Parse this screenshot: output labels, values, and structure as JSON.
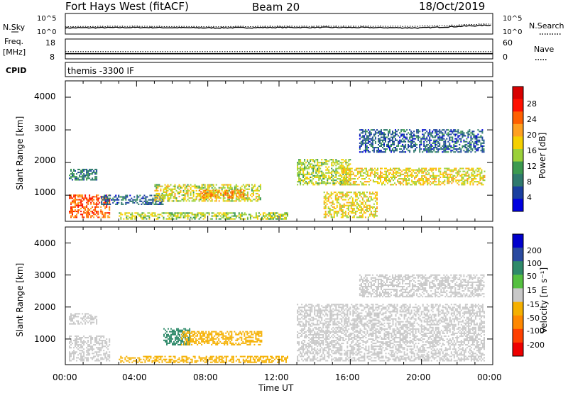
{
  "header": {
    "station": "Fort Hays West (fitACF)",
    "beam": "Beam 20",
    "date": "18/Oct/2019"
  },
  "noise_panel": {
    "left_label": "N.Sky",
    "right_label": "N.Search",
    "left_ticks": [
      "10^5",
      "10^0"
    ],
    "right_ticks": [
      "10^5",
      "10^0"
    ]
  },
  "freq_panel": {
    "left_label_1": "Freq.",
    "left_label_2": "[MHz]",
    "right_label": "Nave",
    "left_ticks": [
      "18",
      "8"
    ],
    "right_ticks": [
      "60",
      "0"
    ]
  },
  "cpid_panel": {
    "label": "CPID",
    "text": "themis -3300 IF"
  },
  "power_panel": {
    "ylabel": "Slant Range [km]",
    "yticks": [
      "4000",
      "3000",
      "2000",
      "1000"
    ],
    "colorbar_label": "Power [dB]",
    "colorbar_ticks": [
      "28",
      "24",
      "20",
      "16",
      "12",
      "8",
      "4"
    ],
    "colors": [
      "#0000e0",
      "#1a3fa0",
      "#2f7a6e",
      "#3c9a50",
      "#9bd13a",
      "#f5d000",
      "#ffa020",
      "#ff6000",
      "#ff1000",
      "#d80000"
    ]
  },
  "velocity_panel": {
    "ylabel": "Slant Range [km]",
    "yticks": [
      "4000",
      "3000",
      "2000",
      "1000"
    ],
    "colorbar_label": "Velocity [m s⁻¹]",
    "colorbar_ticks": [
      "200",
      "100",
      "50",
      "15",
      "-15",
      "-50",
      "-100",
      "-200"
    ],
    "colors": [
      "#0000cc",
      "#2a4aa0",
      "#2f8a6a",
      "#55c040",
      "#c8c8c8",
      "#f5b000",
      "#ff8800",
      "#ff4000",
      "#ee0000"
    ],
    "ground_scatter_color": "#c8c8c8"
  },
  "xaxis": {
    "label": "Time UT",
    "ticks": [
      "00:00",
      "04:00",
      "08:00",
      "12:00",
      "16:00",
      "20:00",
      "00:00"
    ]
  },
  "chart_data": [
    {
      "type": "line",
      "title": "Fort Hays West (fitACF)",
      "series": [
        {
          "name": "N.Sky",
          "x": [
            0,
            4,
            8,
            12,
            16,
            20,
            24
          ],
          "values": [
            1.5,
            1.6,
            1.5,
            1.6,
            1.6,
            1.5,
            2.2
          ]
        },
        {
          "name": "N.Search",
          "x": [
            0,
            4,
            8,
            12,
            16,
            20,
            24
          ],
          "values": [
            1.8,
            1.9,
            1.8,
            1.9,
            1.9,
            1.9,
            2.5
          ]
        }
      ],
      "xlabel": "Time UT",
      "ylim": [
        0,
        5
      ],
      "ylog": true
    },
    {
      "type": "line",
      "series": [
        {
          "name": "Freq.",
          "x": [
            0,
            4,
            8,
            12,
            16,
            20,
            24
          ],
          "values": [
            10.6,
            10.6,
            10.6,
            10.6,
            10.6,
            10.6,
            10.6
          ]
        },
        {
          "name": "Nave",
          "x": [
            0,
            4,
            8,
            12,
            16,
            20,
            24
          ],
          "values": [
            22,
            22,
            22,
            22,
            22,
            22,
            22
          ]
        }
      ],
      "ylim": [
        8,
        18
      ]
    },
    {
      "type": "heatmap",
      "title": "Beam 20",
      "quantity": "Power [dB]",
      "xlabel": "Time UT",
      "ylabel": "Slant Range [km]",
      "xlim": [
        0,
        24
      ],
      "ylim": [
        200,
        4500
      ],
      "clim": [
        0,
        30
      ],
      "regions": [
        {
          "t0": 0.2,
          "t1": 2.5,
          "r0": 300,
          "r1": 1000,
          "value": 22
        },
        {
          "t0": 0.2,
          "t1": 1.8,
          "r0": 1450,
          "r1": 1800,
          "value": 8
        },
        {
          "t0": 2.0,
          "t1": 5.5,
          "r0": 700,
          "r1": 1000,
          "value": 6
        },
        {
          "t0": 5.0,
          "t1": 11.0,
          "r0": 800,
          "r1": 1300,
          "value": 15
        },
        {
          "t0": 7.5,
          "t1": 10.0,
          "r0": 900,
          "r1": 1150,
          "value": 20
        },
        {
          "t0": 3.0,
          "t1": 12.5,
          "r0": 250,
          "r1": 450,
          "value": 14
        },
        {
          "t0": 13.0,
          "t1": 16.0,
          "r0": 1300,
          "r1": 2100,
          "value": 14
        },
        {
          "t0": 14.5,
          "t1": 17.5,
          "r0": 300,
          "r1": 1100,
          "value": 16
        },
        {
          "t0": 15.5,
          "t1": 23.5,
          "r0": 1300,
          "r1": 1800,
          "value": 16
        },
        {
          "t0": 16.5,
          "t1": 23.5,
          "r0": 2300,
          "r1": 3000,
          "value": 6
        }
      ]
    },
    {
      "type": "heatmap",
      "quantity": "Velocity [m s⁻¹]",
      "xlabel": "Time UT",
      "ylabel": "Slant Range [km]",
      "xlim": [
        0,
        24
      ],
      "ylim": [
        200,
        4500
      ],
      "clim": [
        -200,
        200
      ],
      "regions": [
        {
          "t0": 0.2,
          "t1": 2.5,
          "r0": 300,
          "r1": 1100,
          "value": 0
        },
        {
          "t0": 0.2,
          "t1": 1.8,
          "r0": 1450,
          "r1": 1800,
          "value": 0
        },
        {
          "t0": 5.5,
          "t1": 7.0,
          "r0": 800,
          "r1": 1300,
          "value": 40
        },
        {
          "t0": 6.5,
          "t1": 11.0,
          "r0": 800,
          "r1": 1250,
          "value": -30
        },
        {
          "t0": 3.0,
          "t1": 12.5,
          "r0": 250,
          "r1": 450,
          "value": -30
        },
        {
          "t0": 13.0,
          "t1": 23.5,
          "r0": 300,
          "r1": 2100,
          "value": 0
        },
        {
          "t0": 16.5,
          "t1": 23.5,
          "r0": 2300,
          "r1": 3000,
          "value": 0
        }
      ]
    }
  ]
}
